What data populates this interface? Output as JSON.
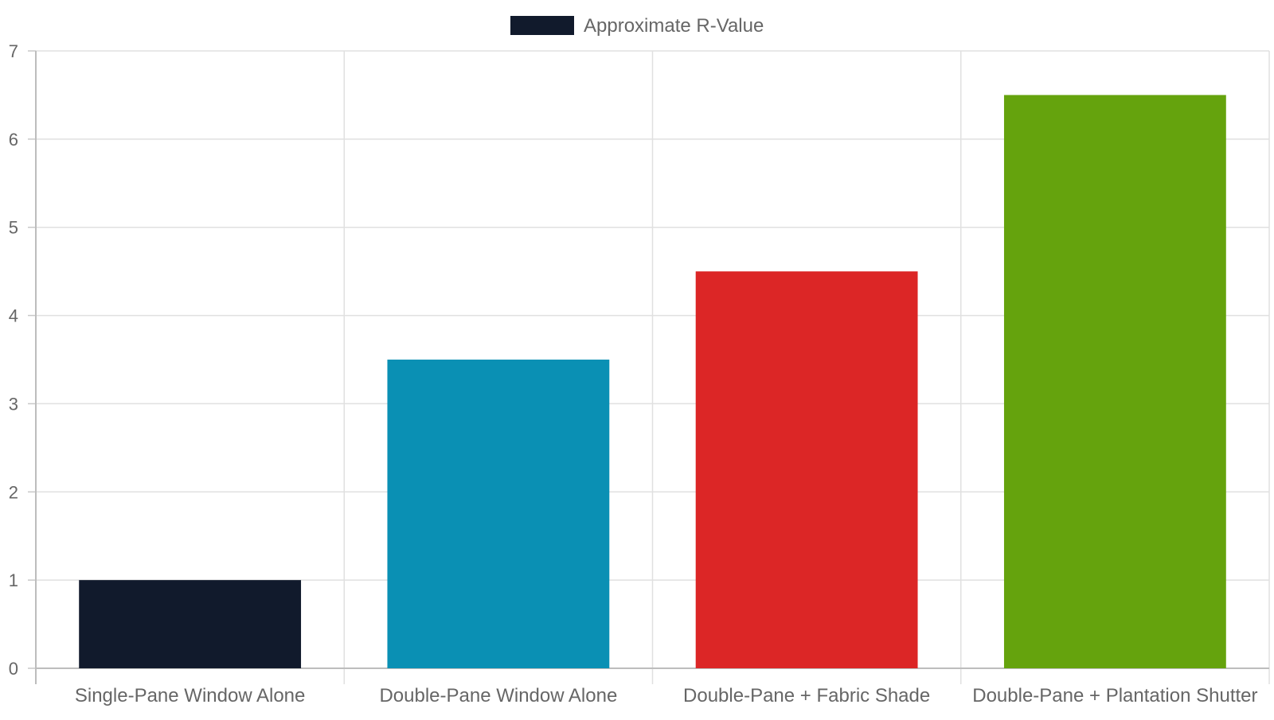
{
  "legend": {
    "label": "Approximate R-Value",
    "swatch_color": "#111a2c"
  },
  "chart_data": {
    "type": "bar",
    "categories": [
      "Single-Pane Window Alone",
      "Double-Pane Window Alone",
      "Double-Pane + Fabric Shade",
      "Double-Pane + Plantation Shutter"
    ],
    "series": [
      {
        "name": "Approximate R-Value",
        "values": [
          1,
          3.5,
          4.5,
          6.5
        ],
        "colors": [
          "#111a2c",
          "#0a90b4",
          "#dc2626",
          "#65a30d"
        ]
      }
    ],
    "ylim": [
      0,
      7
    ],
    "yticks": [
      "0",
      "1",
      "2",
      "3",
      "4",
      "5",
      "6",
      "7"
    ],
    "grid": true,
    "legend_position": "top",
    "title": "",
    "xlabel": "",
    "ylabel": ""
  }
}
